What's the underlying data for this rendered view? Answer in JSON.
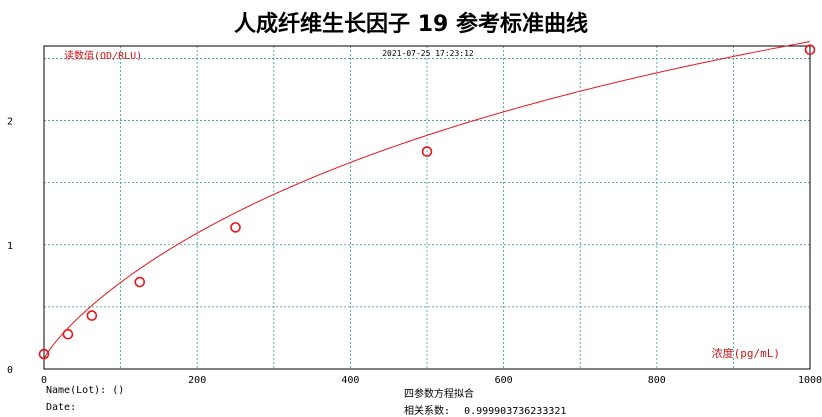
{
  "title": "人成纤维生长因子 19 参考标准曲线",
  "timestamp": "2021-07-25 17:23:12",
  "footer": {
    "name_label": "Name(Lot): ()",
    "date_label": "Date:",
    "fit_method": "四参数方程拟合",
    "r_label": "相关系数:",
    "r_value": "0.999903736233321"
  },
  "colors": {
    "curve": "#e8141a",
    "grid": "#3a9a9a",
    "axis": "#000000",
    "label": "#d11515"
  },
  "chart_data": {
    "type": "scatter",
    "title": "人成纤维生长因子 19 参考标准曲线",
    "xlabel": "浓度(pg/mL)",
    "ylabel": "读数值(OD/RLU)",
    "xlim": [
      0,
      1000
    ],
    "ylim": [
      0,
      2.6
    ],
    "x_ticks": [
      0,
      200,
      400,
      600,
      800,
      1000
    ],
    "y_ticks": [
      0,
      1,
      2
    ],
    "grid": true,
    "series": [
      {
        "points": [
          {
            "x": 0,
            "y": 0.12
          },
          {
            "x": 31.25,
            "y": 0.28
          },
          {
            "x": 62.5,
            "y": 0.43
          },
          {
            "x": 125,
            "y": 0.7
          },
          {
            "x": 250,
            "y": 1.14
          },
          {
            "x": 500,
            "y": 1.75
          },
          {
            "x": 1000,
            "y": 2.57
          }
        ]
      }
    ],
    "fit_curve": {
      "type": "four-parameter-logistic",
      "A": 0.0783,
      "B": 0.84,
      "C": 1154,
      "D": 5.52
    }
  }
}
